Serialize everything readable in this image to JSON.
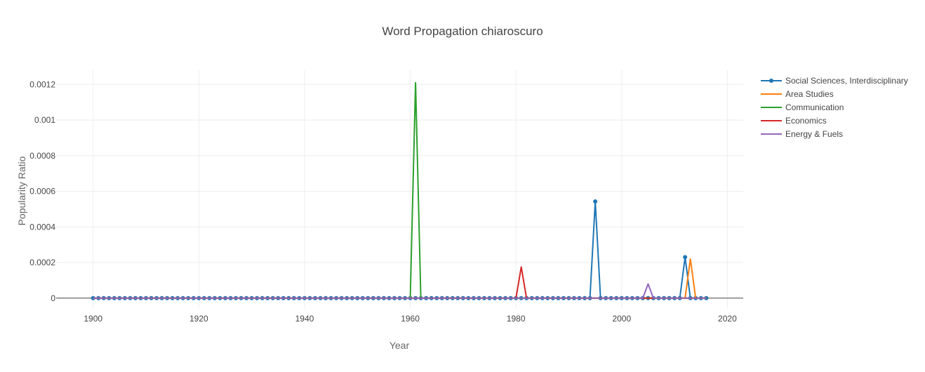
{
  "chart_data": {
    "type": "line",
    "title": "Word Propagation chiaroscuro",
    "xlabel": "Year",
    "ylabel": "Popularity Ratio",
    "xlim": [
      1893,
      2023
    ],
    "ylim": [
      -6e-05,
      0.00128
    ],
    "x_ticks": [
      1900,
      1920,
      1940,
      1960,
      1980,
      2000,
      2020
    ],
    "x_tick_labels": [
      "1900",
      "1920",
      "1940",
      "1960",
      "1980",
      "2000",
      "2020"
    ],
    "y_ticks": [
      0,
      0.0002,
      0.0004,
      0.0006,
      0.0008,
      0.001,
      0.0012
    ],
    "y_tick_labels": [
      "0",
      "0.0002",
      "0.0004",
      "0.0006",
      "0.0008",
      "0.001",
      "0.0012"
    ],
    "grid": true,
    "legend_position": "right",
    "x_range": [
      1900,
      2016
    ],
    "series": [
      {
        "name": "Social Sciences, Interdisciplinary",
        "color": "#1f77b4",
        "markers": true,
        "nonzero": {
          "1995": 0.000543,
          "2012": 0.00023
        }
      },
      {
        "name": "Area Studies",
        "color": "#ff7f0e",
        "markers": false,
        "nonzero": {
          "2013": 0.00022
        }
      },
      {
        "name": "Communication",
        "color": "#2ca02c",
        "markers": false,
        "nonzero": {
          "1961": 0.00121
        }
      },
      {
        "name": "Economics",
        "color": "#d62728",
        "markers": false,
        "nonzero": {
          "1981": 0.000175
        }
      },
      {
        "name": "Energy & Fuels",
        "color": "#9467bd",
        "markers": false,
        "nonzero": {
          "2005": 8e-05
        }
      }
    ]
  }
}
